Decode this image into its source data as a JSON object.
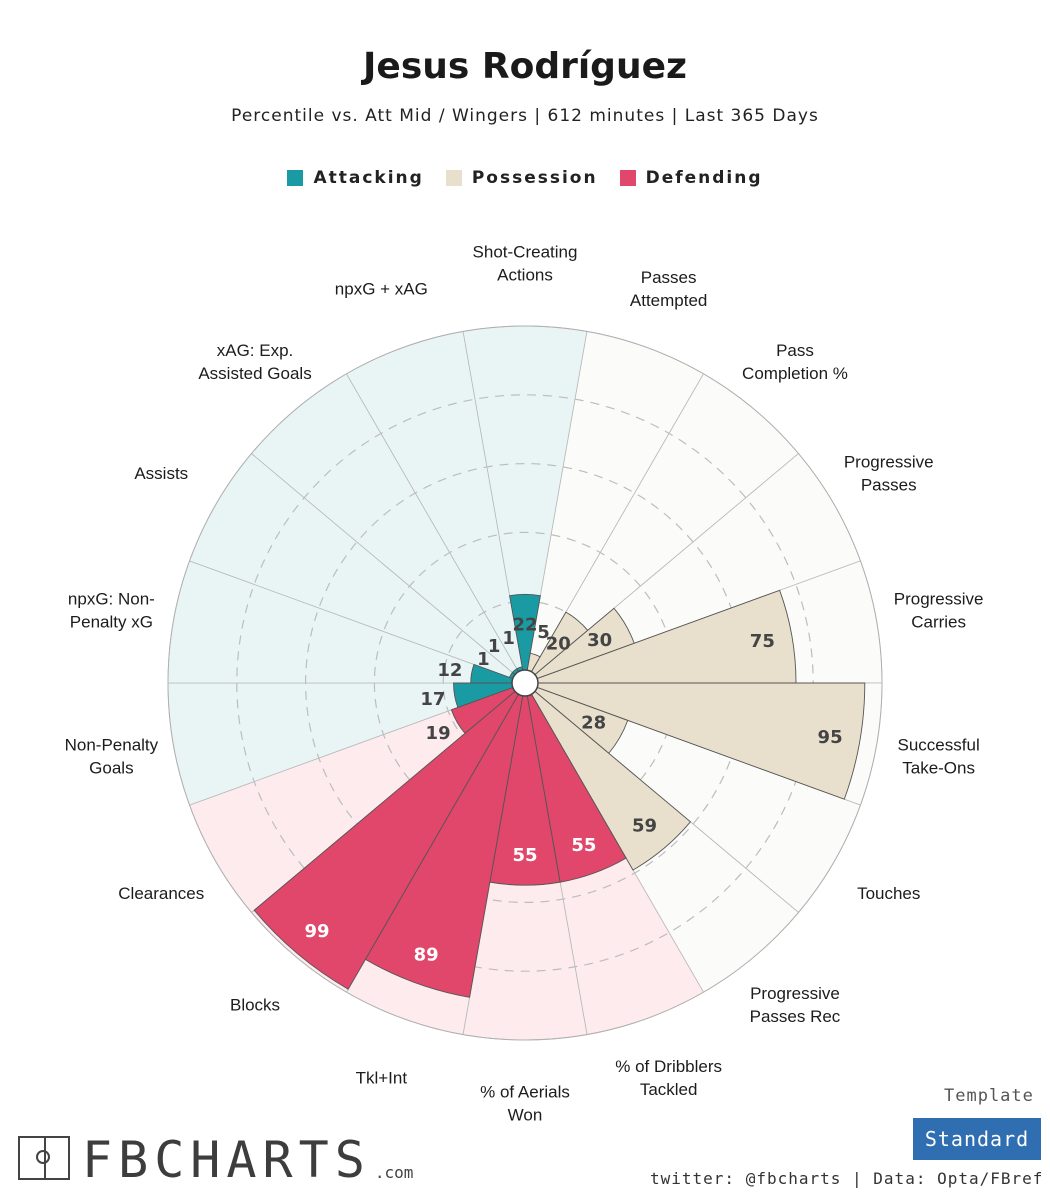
{
  "header": {
    "title": "Jesus Rodríguez",
    "subtitle": "Percentile vs. Att Mid / Wingers | 612 minutes | Last 365 Days"
  },
  "legend": [
    {
      "label": "Attacking",
      "color": "#1a9ba3"
    },
    {
      "label": "Possession",
      "color": "#e8e0cc"
    },
    {
      "label": "Defending",
      "color": "#e0476a"
    }
  ],
  "chart_data": {
    "type": "polar-bar",
    "range": [
      0,
      100
    ],
    "rings": [
      20,
      40,
      60,
      80
    ],
    "categories": [
      {
        "label": "Shot-Creating Actions",
        "value": 22,
        "group": "Attacking"
      },
      {
        "label": "Passes Attempted",
        "value": 5,
        "group": "Possession"
      },
      {
        "label": "Pass Completion %",
        "value": 20,
        "group": "Possession"
      },
      {
        "label": "Progressive Passes",
        "value": 30,
        "group": "Possession"
      },
      {
        "label": "Progressive Carries",
        "value": 75,
        "group": "Possession"
      },
      {
        "label": "Successful Take-Ons",
        "value": 95,
        "group": "Possession"
      },
      {
        "label": "Touches",
        "value": 28,
        "group": "Possession"
      },
      {
        "label": "Progressive Passes Rec",
        "value": 59,
        "group": "Possession"
      },
      {
        "label": "% of Dribblers Tackled",
        "value": 55,
        "group": "Defending"
      },
      {
        "label": "% of Aerials Won",
        "value": 55,
        "group": "Defending"
      },
      {
        "label": "Tkl+Int",
        "value": 89,
        "group": "Defending"
      },
      {
        "label": "Blocks",
        "value": 99,
        "group": "Defending"
      },
      {
        "label": "Clearances",
        "value": 19,
        "group": "Defending"
      },
      {
        "label": "Non-Penalty Goals",
        "value": 17,
        "group": "Attacking"
      },
      {
        "label": "npxG: Non-Penalty xG",
        "value": 12,
        "group": "Attacking"
      },
      {
        "label": "Assists",
        "value": 1,
        "group": "Attacking"
      },
      {
        "label": "xAG: Exp. Assisted Goals",
        "value": 1,
        "group": "Attacking"
      },
      {
        "label": "npxG + xAG",
        "value": 1,
        "group": "Attacking"
      }
    ],
    "label_lines": [
      [
        "Shot-Creating",
        "Actions"
      ],
      [
        "Passes",
        "Attempted"
      ],
      [
        "Pass",
        "Completion %"
      ],
      [
        "Progressive",
        "Passes"
      ],
      [
        "Progressive",
        "Carries"
      ],
      [
        "Successful",
        "Take-Ons"
      ],
      [
        "Touches"
      ],
      [
        "Progressive",
        "Passes Rec"
      ],
      [
        "% of Dribblers",
        "Tackled"
      ],
      [
        "% of Aerials",
        "Won"
      ],
      [
        "Tkl+Int"
      ],
      [
        "Blocks"
      ],
      [
        "Clearances"
      ],
      [
        "Non-Penalty",
        "Goals"
      ],
      [
        "npxG: Non-",
        "Penalty xG"
      ],
      [
        "Assists"
      ],
      [
        "xAG: Exp.",
        "Assisted Goals"
      ],
      [
        "npxG + xAG"
      ]
    ],
    "colors": {
      "Attacking": {
        "bar": "#1a9ba3",
        "bg": "#e9f5f5",
        "text": "#444444"
      },
      "Possession": {
        "bar": "#e8e0cc",
        "bg": "#fbfbf9",
        "text": "#444444"
      },
      "Defending": {
        "bar": "#e0476a",
        "bg": "#fdebee",
        "text": "#444444"
      }
    }
  },
  "footer": {
    "logo_text": "FBCHARTS",
    "logo_domain": ".com",
    "template_label": "Template",
    "template_value": "Standard",
    "credit": "twitter: @fbcharts | Data: Opta/FBref"
  }
}
